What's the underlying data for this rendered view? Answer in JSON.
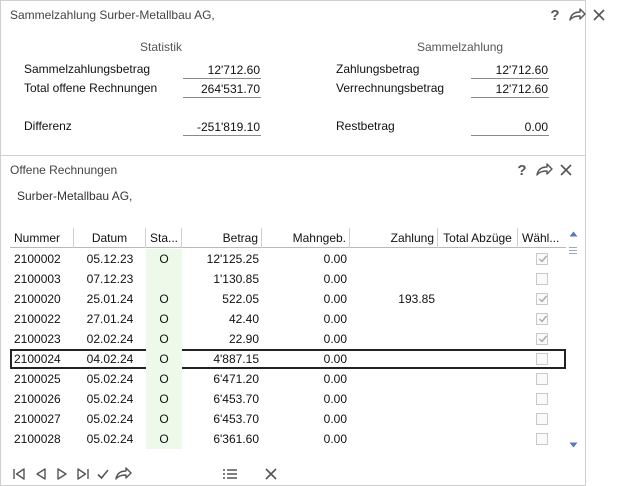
{
  "top_window": {
    "title": "Sammelzahlung Surber-Metallbau AG,",
    "statistik": {
      "heading": "Statistik",
      "sammelzahlungsbetrag_label": "Sammelzahlungsbetrag",
      "sammelzahlungsbetrag_value": "12'712.60",
      "total_offene_label": "Total offene Rechnungen",
      "total_offene_value": "264'531.70",
      "differenz_label": "Differenz",
      "differenz_value": "-251'819.10"
    },
    "sammelzahlung": {
      "heading": "Sammelzahlung",
      "zahlungsbetrag_label": "Zahlungsbetrag",
      "zahlungsbetrag_value": "12'712.60",
      "verrechnungsbetrag_label": "Verrechnungsbetrag",
      "verrechnungsbetrag_value": "12'712.60",
      "restbetrag_label": "Restbetrag",
      "restbetrag_value": "0.00"
    },
    "help_glyph": "?"
  },
  "bottom_window": {
    "title": "Offene Rechnungen",
    "subtitle": "Surber-Metallbau AG,",
    "help_glyph": "?",
    "columns": [
      "Nummer",
      "Datum",
      "Sta...",
      "Betrag",
      "Mahngeb.",
      "Zahlung",
      "Total Abzüge",
      "Wähl..."
    ],
    "rows": [
      {
        "nummer": "2100002",
        "datum": "05.12.23",
        "status": "O",
        "betrag": "12'125.25",
        "mahngeb": "0.00",
        "zahlung": "",
        "abzuege": "",
        "checked": true
      },
      {
        "nummer": "2100003",
        "datum": "07.12.23",
        "status": "",
        "betrag": "1'130.85",
        "mahngeb": "0.00",
        "zahlung": "",
        "abzuege": "",
        "checked": false
      },
      {
        "nummer": "2100020",
        "datum": "25.01.24",
        "status": "O",
        "betrag": "522.05",
        "mahngeb": "0.00",
        "zahlung": "193.85",
        "abzuege": "",
        "checked": true
      },
      {
        "nummer": "2100022",
        "datum": "27.01.24",
        "status": "O",
        "betrag": "42.40",
        "mahngeb": "0.00",
        "zahlung": "",
        "abzuege": "",
        "checked": true
      },
      {
        "nummer": "2100023",
        "datum": "02.02.24",
        "status": "O",
        "betrag": "22.90",
        "mahngeb": "0.00",
        "zahlung": "",
        "abzuege": "",
        "checked": true
      },
      {
        "nummer": "2100024",
        "datum": "04.02.24",
        "status": "O",
        "betrag": "4'887.15",
        "mahngeb": "0.00",
        "zahlung": "",
        "abzuege": "",
        "checked": false,
        "selected": true
      },
      {
        "nummer": "2100025",
        "datum": "05.02.24",
        "status": "O",
        "betrag": "6'471.20",
        "mahngeb": "0.00",
        "zahlung": "",
        "abzuege": "",
        "checked": false
      },
      {
        "nummer": "2100026",
        "datum": "05.02.24",
        "status": "O",
        "betrag": "6'453.70",
        "mahngeb": "0.00",
        "zahlung": "",
        "abzuege": "",
        "checked": false
      },
      {
        "nummer": "2100027",
        "datum": "05.02.24",
        "status": "O",
        "betrag": "6'453.70",
        "mahngeb": "0.00",
        "zahlung": "",
        "abzuege": "",
        "checked": false
      },
      {
        "nummer": "2100028",
        "datum": "05.02.24",
        "status": "O",
        "betrag": "6'361.60",
        "mahngeb": "0.00",
        "zahlung": "",
        "abzuege": "",
        "checked": false
      }
    ]
  },
  "colors": {
    "status_highlight": "#eef9ea",
    "selection_border": "#222222",
    "scroll_accent": "#5a78b8"
  }
}
